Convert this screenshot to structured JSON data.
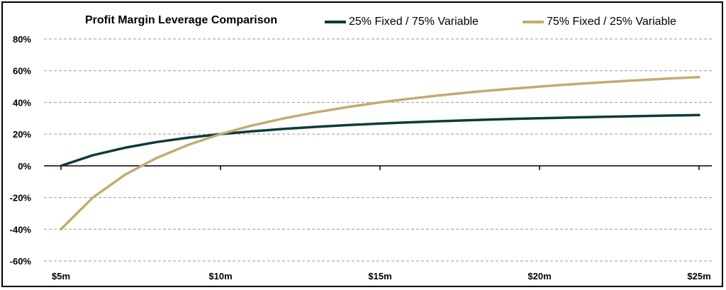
{
  "chart_data": {
    "type": "line",
    "title": "Profit Margin Leverage Comparison",
    "xlabel": "",
    "ylabel": "",
    "x_tick_labels": [
      "$5m",
      "$10m",
      "$15m",
      "$20m",
      "$25m"
    ],
    "x_ticks": [
      5,
      10,
      15,
      20,
      25
    ],
    "x": [
      5,
      6,
      7,
      8,
      9,
      10,
      11,
      12,
      13,
      14,
      15,
      16,
      17,
      18,
      19,
      20,
      21,
      22,
      23,
      24,
      25
    ],
    "xlim": [
      5,
      25
    ],
    "ylim": [
      -60,
      80
    ],
    "y_ticks": [
      -60,
      -40,
      -20,
      0,
      20,
      40,
      60,
      80
    ],
    "y_tick_labels": [
      "-60%",
      "-40%",
      "-20%",
      "0%",
      "20%",
      "40%",
      "60%",
      "80%"
    ],
    "grid": "horizontal-dashed",
    "legend": "top",
    "series": [
      {
        "name": "25% Fixed / 75% Variable",
        "color": "#0d3b3b",
        "values": [
          0,
          6.7,
          11.4,
          15,
          17.8,
          20,
          21.8,
          23.3,
          24.6,
          25.7,
          26.7,
          27.5,
          28.2,
          28.9,
          29.5,
          30,
          30.5,
          30.9,
          31.3,
          31.7,
          32
        ]
      },
      {
        "name": "75% Fixed / 25% Variable",
        "color": "#c2ac6f",
        "values": [
          -40,
          -20,
          -5.7,
          5,
          13.3,
          20,
          25.5,
          30,
          33.8,
          37.1,
          40,
          42.5,
          44.7,
          46.7,
          48.4,
          50,
          51.4,
          52.7,
          53.9,
          55,
          56
        ]
      }
    ]
  }
}
